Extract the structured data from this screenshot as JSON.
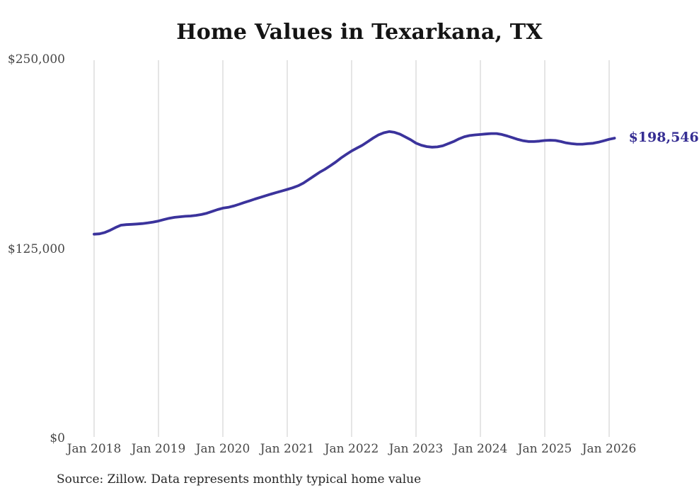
{
  "title": "Home Values in Texarkana, TX",
  "source_note": "Source: Zillow. Data represents monthly typical home value",
  "end_label": "$198,546",
  "colors": {
    "line": "#3b339c",
    "end_label": "#362e93",
    "gridline": "#cbcbcb",
    "title": "#141414",
    "tick": "#474747",
    "source": "#262626",
    "background": "#ffffff"
  },
  "chart_data": {
    "type": "line",
    "title": "Home Values in Texarkana, TX",
    "xlabel": "",
    "ylabel": "",
    "legend": "none",
    "grid": "vertical-only",
    "ylim": [
      0,
      250000
    ],
    "y_tick_values": [
      0,
      125000,
      250000
    ],
    "y_tick_labels": [
      "$0",
      "$125,000",
      "$250,000"
    ],
    "x_tick_labels": [
      "Jan 2018",
      "Jan 2019",
      "Jan 2020",
      "Jan 2021",
      "Jan 2022",
      "Jan 2023",
      "Jan 2024",
      "Jan 2025",
      "Jan 2026"
    ],
    "x_start_month": "2018-01",
    "x_end_month": "2026-02",
    "end_value": 198546,
    "series": [
      {
        "name": "Typical home value",
        "unit": "USD",
        "monthly_values": [
          135200,
          135400,
          136300,
          137800,
          139600,
          141100,
          141500,
          141700,
          141900,
          142200,
          142600,
          143200,
          143900,
          144800,
          145700,
          146300,
          146700,
          147000,
          147200,
          147600,
          148200,
          149000,
          150200,
          151400,
          152400,
          152900,
          153800,
          154900,
          156100,
          157200,
          158400,
          159500,
          160600,
          161700,
          162700,
          163700,
          164700,
          165800,
          167100,
          168900,
          171200,
          173600,
          176000,
          178000,
          180300,
          182700,
          185400,
          187800,
          190100,
          192000,
          193900,
          196200,
          198600,
          200700,
          202100,
          202900,
          202400,
          201200,
          199400,
          197500,
          195300,
          193900,
          193000,
          192600,
          192800,
          193500,
          194900,
          196300,
          198100,
          199500,
          200300,
          200700,
          201000,
          201300,
          201600,
          201600,
          201000,
          200000,
          198900,
          197700,
          196800,
          196300,
          196300,
          196600,
          197000,
          197200,
          197000,
          196300,
          195400,
          194900,
          194600,
          194600,
          194900,
          195200,
          195900,
          196800,
          197800,
          198546
        ]
      }
    ]
  }
}
